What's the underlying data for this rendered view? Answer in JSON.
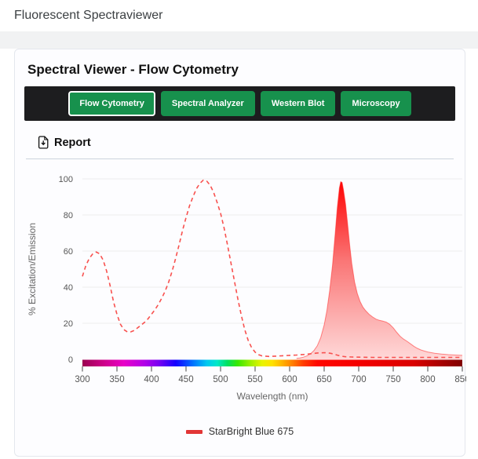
{
  "header": {
    "title": "Fluorescent Spectraviewer"
  },
  "card": {
    "title": "Spectral Viewer - Flow Cytometry"
  },
  "tabs": [
    {
      "label": "Flow Cytometry",
      "active": true
    },
    {
      "label": "Spectral Analyzer",
      "active": false
    },
    {
      "label": "Western Blot",
      "active": false
    },
    {
      "label": "Microscopy",
      "active": false
    }
  ],
  "report": {
    "label": "Report",
    "icon": "file-download-icon"
  },
  "colors": {
    "button_green": "#17914d",
    "tab_bar_bg": "#1d1d1f",
    "excitation_line": "#f8514f",
    "emission_gradient_top": "#ff0000",
    "emission_gradient_mid": "#fa7575",
    "emission_gradient_bottom": "#fed9d9",
    "legend_swatch": "#e23636",
    "gridline": "#ededed",
    "axis_text": "#555555"
  },
  "chart_data": {
    "type": "area",
    "title": "",
    "xlabel": "Wavelength (nm)",
    "ylabel": "% Excitation/Emission",
    "xlim": [
      300,
      850
    ],
    "ylim": [
      0,
      100
    ],
    "x_ticks": [
      300,
      350,
      400,
      450,
      500,
      550,
      600,
      650,
      700,
      750,
      800,
      850
    ],
    "y_ticks": [
      0,
      20,
      40,
      60,
      80,
      100
    ],
    "grid": "horizontal-only",
    "legend_position": "bottom",
    "legend": [
      {
        "label": "StarBright Blue 675",
        "color": "#e23636"
      }
    ],
    "series": [
      {
        "name": "StarBright Blue 675 Excitation",
        "style": "dashed-line",
        "points": [
          [
            300,
            46
          ],
          [
            305,
            52
          ],
          [
            310,
            56
          ],
          [
            315,
            58.5
          ],
          [
            320,
            59.5
          ],
          [
            325,
            58.5
          ],
          [
            330,
            55
          ],
          [
            335,
            49
          ],
          [
            340,
            41
          ],
          [
            345,
            32
          ],
          [
            350,
            25
          ],
          [
            355,
            19.5
          ],
          [
            360,
            16.5
          ],
          [
            365,
            15.2
          ],
          [
            370,
            15.2
          ],
          [
            375,
            16
          ],
          [
            380,
            17.5
          ],
          [
            385,
            19
          ],
          [
            390,
            20.5
          ],
          [
            395,
            22.5
          ],
          [
            400,
            25
          ],
          [
            405,
            27.5
          ],
          [
            410,
            30.5
          ],
          [
            415,
            34
          ],
          [
            420,
            38
          ],
          [
            425,
            43
          ],
          [
            430,
            49
          ],
          [
            435,
            56
          ],
          [
            440,
            63.5
          ],
          [
            445,
            71.5
          ],
          [
            450,
            78.5
          ],
          [
            455,
            85
          ],
          [
            460,
            90
          ],
          [
            465,
            94.5
          ],
          [
            470,
            97.5
          ],
          [
            475,
            99.3
          ],
          [
            480,
            98.8
          ],
          [
            485,
            96.5
          ],
          [
            490,
            92.5
          ],
          [
            495,
            87
          ],
          [
            500,
            81
          ],
          [
            505,
            73
          ],
          [
            510,
            63.5
          ],
          [
            515,
            53.5
          ],
          [
            520,
            43.5
          ],
          [
            525,
            33.5
          ],
          [
            530,
            24.5
          ],
          [
            535,
            16.5
          ],
          [
            540,
            10.5
          ],
          [
            545,
            6.5
          ],
          [
            550,
            4
          ],
          [
            555,
            2.6
          ],
          [
            560,
            1.9
          ],
          [
            570,
            1.6
          ],
          [
            580,
            1.8
          ],
          [
            590,
            2
          ],
          [
            600,
            2.2
          ],
          [
            610,
            2.4
          ],
          [
            620,
            2.7
          ],
          [
            630,
            3.1
          ],
          [
            640,
            3.5
          ],
          [
            650,
            3.7
          ],
          [
            655,
            3.6
          ],
          [
            660,
            3.3
          ],
          [
            665,
            2.8
          ],
          [
            670,
            2.2
          ],
          [
            675,
            1.8
          ],
          [
            680,
            1.5
          ],
          [
            690,
            1.3
          ],
          [
            700,
            1.2
          ],
          [
            720,
            1.1
          ],
          [
            740,
            1.1
          ],
          [
            760,
            1.1
          ],
          [
            780,
            1.1
          ],
          [
            800,
            1.1
          ],
          [
            820,
            1.1
          ],
          [
            850,
            1.1
          ]
        ]
      },
      {
        "name": "StarBright Blue 675 Emission",
        "style": "filled-area",
        "points": [
          [
            610,
            0.5
          ],
          [
            615,
            0.8
          ],
          [
            620,
            1.2
          ],
          [
            625,
            1.9
          ],
          [
            630,
            3
          ],
          [
            635,
            4.8
          ],
          [
            640,
            7.5
          ],
          [
            645,
            12
          ],
          [
            650,
            19
          ],
          [
            654,
            27
          ],
          [
            658,
            38
          ],
          [
            662,
            52
          ],
          [
            666,
            70
          ],
          [
            669,
            84
          ],
          [
            672,
            95
          ],
          [
            674,
            98.5
          ],
          [
            676,
            98
          ],
          [
            678,
            94
          ],
          [
            681,
            86
          ],
          [
            684,
            75
          ],
          [
            687,
            63
          ],
          [
            690,
            53
          ],
          [
            694,
            43
          ],
          [
            698,
            36.5
          ],
          [
            702,
            32
          ],
          [
            706,
            29
          ],
          [
            710,
            27
          ],
          [
            715,
            25
          ],
          [
            720,
            23.5
          ],
          [
            725,
            22.3
          ],
          [
            730,
            21.6
          ],
          [
            735,
            21.2
          ],
          [
            740,
            20.6
          ],
          [
            745,
            19.4
          ],
          [
            750,
            17.5
          ],
          [
            755,
            15
          ],
          [
            760,
            12.8
          ],
          [
            765,
            11.2
          ],
          [
            770,
            10
          ],
          [
            775,
            8.6
          ],
          [
            780,
            7.2
          ],
          [
            785,
            6.1
          ],
          [
            790,
            5.2
          ],
          [
            795,
            4.6
          ],
          [
            800,
            4.1
          ],
          [
            810,
            3.4
          ],
          [
            820,
            2.9
          ],
          [
            830,
            2.6
          ],
          [
            840,
            2.4
          ],
          [
            850,
            2.2
          ]
        ]
      }
    ],
    "spectrum_bar": [
      {
        "nm": 300,
        "color": "#9b0050"
      },
      {
        "nm": 330,
        "color": "#cc0087"
      },
      {
        "nm": 360,
        "color": "#e800c8"
      },
      {
        "nm": 390,
        "color": "#b100e8"
      },
      {
        "nm": 410,
        "color": "#7a00f0"
      },
      {
        "nm": 435,
        "color": "#1400ff"
      },
      {
        "nm": 460,
        "color": "#0072ff"
      },
      {
        "nm": 480,
        "color": "#00c8f0"
      },
      {
        "nm": 495,
        "color": "#00e8c8"
      },
      {
        "nm": 510,
        "color": "#00e060"
      },
      {
        "nm": 525,
        "color": "#3ae800"
      },
      {
        "nm": 545,
        "color": "#a6f000"
      },
      {
        "nm": 560,
        "color": "#e8f400"
      },
      {
        "nm": 575,
        "color": "#ffe100"
      },
      {
        "nm": 590,
        "color": "#ffb000"
      },
      {
        "nm": 605,
        "color": "#ff7a00"
      },
      {
        "nm": 620,
        "color": "#ff3c00"
      },
      {
        "nm": 640,
        "color": "#ff0800"
      },
      {
        "nm": 700,
        "color": "#f40000"
      },
      {
        "nm": 780,
        "color": "#d90000"
      },
      {
        "nm": 850,
        "color": "#800000"
      }
    ]
  }
}
